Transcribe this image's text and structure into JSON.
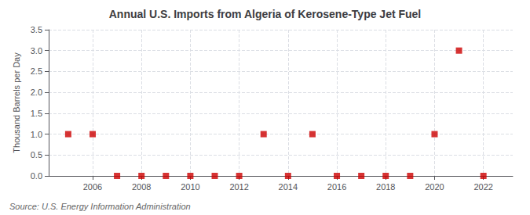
{
  "chart_data": {
    "type": "scatter",
    "title": "Annual U.S. Imports from Algeria of Kerosene-Type Jet Fuel",
    "ylabel": "Thousand Barrels per Day",
    "annotations": [
      "Source: U.S. Energy Information Administration"
    ],
    "x": [
      2005,
      2006,
      2007,
      2008,
      2009,
      2010,
      2011,
      2012,
      2013,
      2014,
      2015,
      2016,
      2017,
      2018,
      2019,
      2020,
      2021,
      2022
    ],
    "values": [
      1.0,
      1.0,
      0.0,
      0.0,
      0.0,
      0.0,
      0.0,
      0.0,
      1.0,
      0.0,
      1.0,
      0.0,
      0.0,
      0.0,
      0.0,
      1.0,
      3.0,
      0.0
    ],
    "color": "#cc0000",
    "marker": "square",
    "xlim": [
      2004.2,
      2023.2
    ],
    "xticks": [
      2006,
      2008,
      2010,
      2012,
      2014,
      2016,
      2018,
      2020,
      2022
    ],
    "ylim": [
      0.0,
      3.5
    ],
    "yticks": [
      {
        "value": 0.0,
        "label": "0.0"
      },
      0.5,
      {
        "value": 1.0,
        "label": "1.0"
      },
      1.5,
      {
        "value": 2.0,
        "label": "2.0"
      },
      2.5,
      {
        "value": 3.0,
        "label": "3.0"
      },
      3.5
    ],
    "grid": true
  }
}
